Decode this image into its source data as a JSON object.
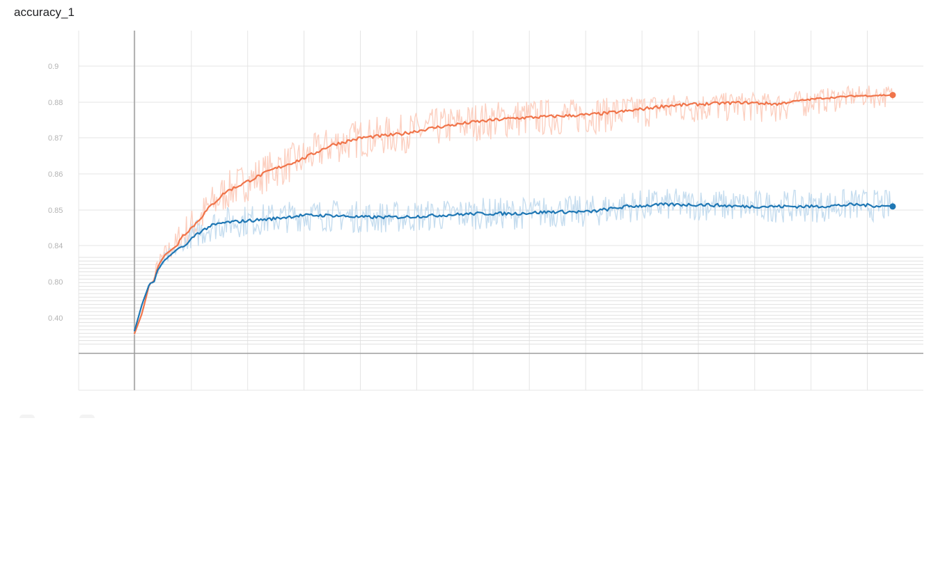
{
  "chart_data": {
    "type": "line",
    "title": "accuracy_1",
    "xlabel": "",
    "ylabel": "",
    "y_ticks": [
      "0.40",
      "0.80",
      "0.84",
      "0.85",
      "0.86",
      "0.87",
      "0.88",
      "0.9"
    ],
    "x_tick_labels": [],
    "grid": true,
    "legend": "none",
    "y_scale": "nonlinear (compressed below 0.84)",
    "x": [
      0,
      0.01,
      0.02,
      0.03,
      0.04,
      0.06,
      0.08,
      0.1,
      0.12,
      0.15,
      0.18,
      0.22,
      0.26,
      0.3,
      0.35,
      0.4,
      0.45,
      0.5,
      0.55,
      0.6,
      0.65,
      0.7,
      0.75,
      0.8,
      0.85,
      0.9,
      0.95,
      1.0
    ],
    "series": [
      {
        "color": "#f0744a",
        "light_color": "#fcd0c1",
        "values": [
          0.22,
          0.45,
          0.78,
          0.815,
          0.83,
          0.842,
          0.846,
          0.851,
          0.855,
          0.858,
          0.861,
          0.864,
          0.868,
          0.87,
          0.871,
          0.873,
          0.8745,
          0.8755,
          0.876,
          0.8765,
          0.8775,
          0.879,
          0.8795,
          0.88,
          0.8795,
          0.882,
          0.8835,
          0.884
        ]
      },
      {
        "color": "#1f77b4",
        "light_color": "#c6ddef",
        "values": [
          0.25,
          0.55,
          0.78,
          0.812,
          0.824,
          0.838,
          0.843,
          0.8455,
          0.8465,
          0.847,
          0.8475,
          0.8485,
          0.8485,
          0.848,
          0.848,
          0.8485,
          0.849,
          0.849,
          0.8495,
          0.8495,
          0.851,
          0.8515,
          0.8515,
          0.851,
          0.851,
          0.851,
          0.8515,
          0.851
        ]
      }
    ]
  }
}
